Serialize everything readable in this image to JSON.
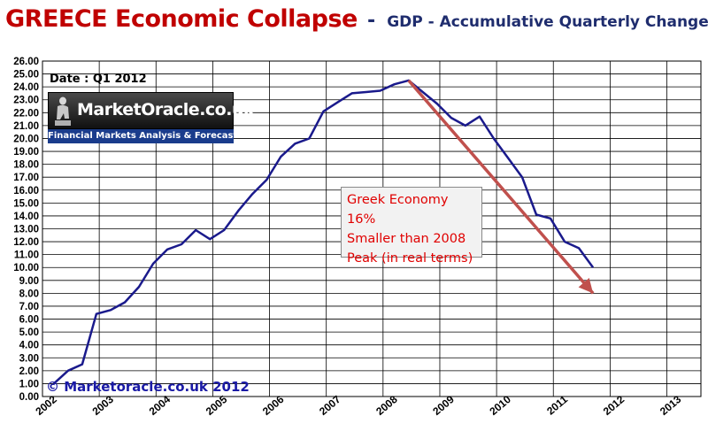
{
  "title": {
    "main": "GREECE Economic Collapse",
    "dash": "-",
    "sub": "GDP - Accumulative Quarterly Change"
  },
  "date_label": "Date : Q1 2012",
  "watermark": {
    "text": "MarketOracle.co.uk",
    "tagline": "Financial Markets Analysis & Forecasts"
  },
  "annotation": {
    "lines": [
      "Greek Economy 16%",
      "Smaller than 2008",
      "Peak (in real terms)"
    ]
  },
  "copyright": "© Marketoracle.co.uk 2012",
  "colors": {
    "line": "#1a1a8c",
    "arrow": "#c0504d",
    "grid": "#000000",
    "title": "#c00000",
    "subtitle": "#1f2d6e"
  },
  "chart_data": {
    "type": "line",
    "x_ticks": [
      "2002",
      "2003",
      "2004",
      "2005",
      "2006",
      "2007",
      "2008",
      "2009",
      "2010",
      "2011",
      "2012",
      "2013"
    ],
    "xlim": [
      2002,
      2013.6
    ],
    "ylim": [
      0,
      26
    ],
    "y_step": 1,
    "grid": true,
    "x": [
      2002.2,
      2002.45,
      2002.7,
      2002.95,
      2003.2,
      2003.45,
      2003.7,
      2003.95,
      2004.2,
      2004.45,
      2004.7,
      2004.95,
      2005.2,
      2005.45,
      2005.7,
      2005.95,
      2006.2,
      2006.45,
      2006.7,
      2006.95,
      2007.2,
      2007.45,
      2007.7,
      2007.95,
      2008.2,
      2008.45,
      2008.7,
      2008.95,
      2009.2,
      2009.45,
      2009.7,
      2009.95,
      2010.2,
      2010.45,
      2010.7,
      2010.95,
      2011.2,
      2011.45,
      2011.7
    ],
    "values": [
      1.0,
      2.0,
      2.5,
      6.4,
      6.7,
      7.3,
      8.5,
      10.3,
      11.4,
      11.8,
      12.9,
      12.2,
      12.9,
      14.4,
      15.7,
      16.8,
      18.6,
      19.6,
      20.0,
      22.1,
      22.8,
      23.5,
      23.6,
      23.7,
      24.2,
      24.5,
      23.6,
      22.7,
      21.6,
      21.0,
      21.7,
      20.0,
      18.5,
      17.0,
      14.1,
      13.8,
      12.0,
      11.5,
      10.0
    ],
    "trend_arrow": {
      "from": [
        2008.45,
        24.5
      ],
      "to": [
        2011.7,
        8.0
      ]
    }
  }
}
